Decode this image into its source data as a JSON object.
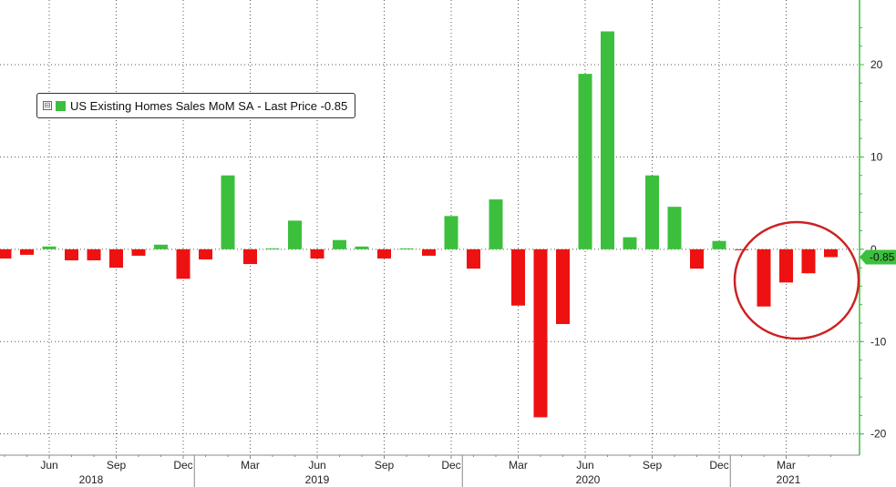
{
  "chart_data": {
    "type": "bar",
    "legend": {
      "series_name": "US Existing Homes Sales MoM SA",
      "last_price_label": "Last Price",
      "last_price_value": "-0.85"
    },
    "last_value_tag": "-0.85",
    "colors": {
      "positive": "#3cbf3c",
      "negative": "#ee1111",
      "circle": "#cc2222",
      "grid": "#555555",
      "axis": "#3cbf3c"
    },
    "ylim": [
      -22.3,
      27
    ],
    "y_ticks": [
      "20",
      "10",
      "0",
      "-10",
      "-20"
    ],
    "y_tick_values": [
      20,
      10,
      0,
      -10,
      -20
    ],
    "month_ticks": [
      "Jun",
      "Sep",
      "Dec",
      "Mar",
      "Jun",
      "Sep",
      "Dec",
      "Mar",
      "Jun",
      "Sep",
      "Dec",
      "Mar"
    ],
    "year_labels": [
      "2018",
      "2019",
      "2020",
      "2021"
    ],
    "grid": true,
    "legend_position": "top-left",
    "highlight": "circle around Feb–Apr 2021 bars",
    "categories": [
      "Apr 2018",
      "May 2018",
      "Jun 2018",
      "Jul 2018",
      "Aug 2018",
      "Sep 2018",
      "Oct 2018",
      "Nov 2018",
      "Dec 2018",
      "Jan 2019",
      "Feb 2019",
      "Mar 2019",
      "Apr 2019",
      "May 2019",
      "Jun 2019",
      "Jul 2019",
      "Aug 2019",
      "Sep 2019",
      "Oct 2019",
      "Nov 2019",
      "Dec 2019",
      "Jan 2020",
      "Feb 2020",
      "Mar 2020",
      "Apr 2020",
      "May 2020",
      "Jun 2020",
      "Jul 2020",
      "Aug 2020",
      "Sep 2020",
      "Oct 2020",
      "Nov 2020",
      "Dec 2020",
      "Jan 2021",
      "Feb 2021",
      "Mar 2021",
      "Apr 2021",
      "May 2021"
    ],
    "values": [
      -1.0,
      -0.6,
      0.3,
      -1.2,
      -1.2,
      -2.0,
      -0.7,
      0.5,
      -3.2,
      -1.1,
      8.0,
      -1.6,
      0.1,
      3.1,
      -1.0,
      1.0,
      0.3,
      -1.0,
      0.1,
      -0.7,
      3.6,
      -2.1,
      5.4,
      -6.1,
      -18.2,
      -8.1,
      19.0,
      23.6,
      1.3,
      8.0,
      4.6,
      -2.1,
      0.9,
      -0.1,
      -6.2,
      -3.6,
      -2.6,
      -0.85
    ]
  }
}
